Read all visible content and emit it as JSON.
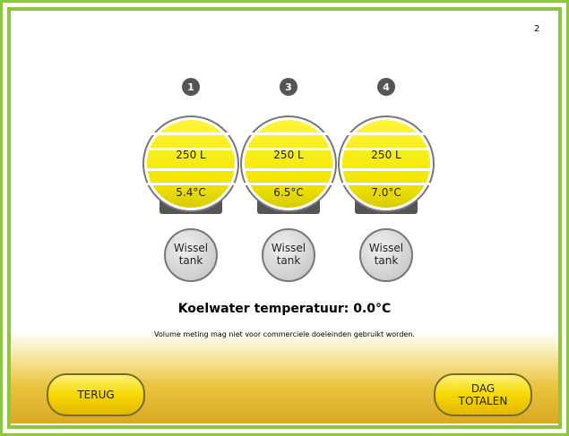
{
  "page_number": "2",
  "tanks": [
    {
      "number": "1",
      "volume": "250 L",
      "temperature": "5.4°C",
      "button": [
        "Wissel",
        "tank"
      ]
    },
    {
      "number": "3",
      "volume": "250 L",
      "temperature": "6.5°C",
      "button": [
        "Wissel",
        "tank"
      ]
    },
    {
      "number": "4",
      "volume": "250 L",
      "temperature": "7.0°C",
      "button": [
        "Wissel",
        "tank"
      ]
    }
  ],
  "coolant": "Koelwater temperatuur: 0.0°C",
  "disclaimer": "Volume meting mag niet voor commerciele doeleinden gebruikt worden.",
  "buttons": {
    "back": [
      "TERUG"
    ],
    "totals": [
      "DAG",
      "TOTALEN"
    ]
  }
}
